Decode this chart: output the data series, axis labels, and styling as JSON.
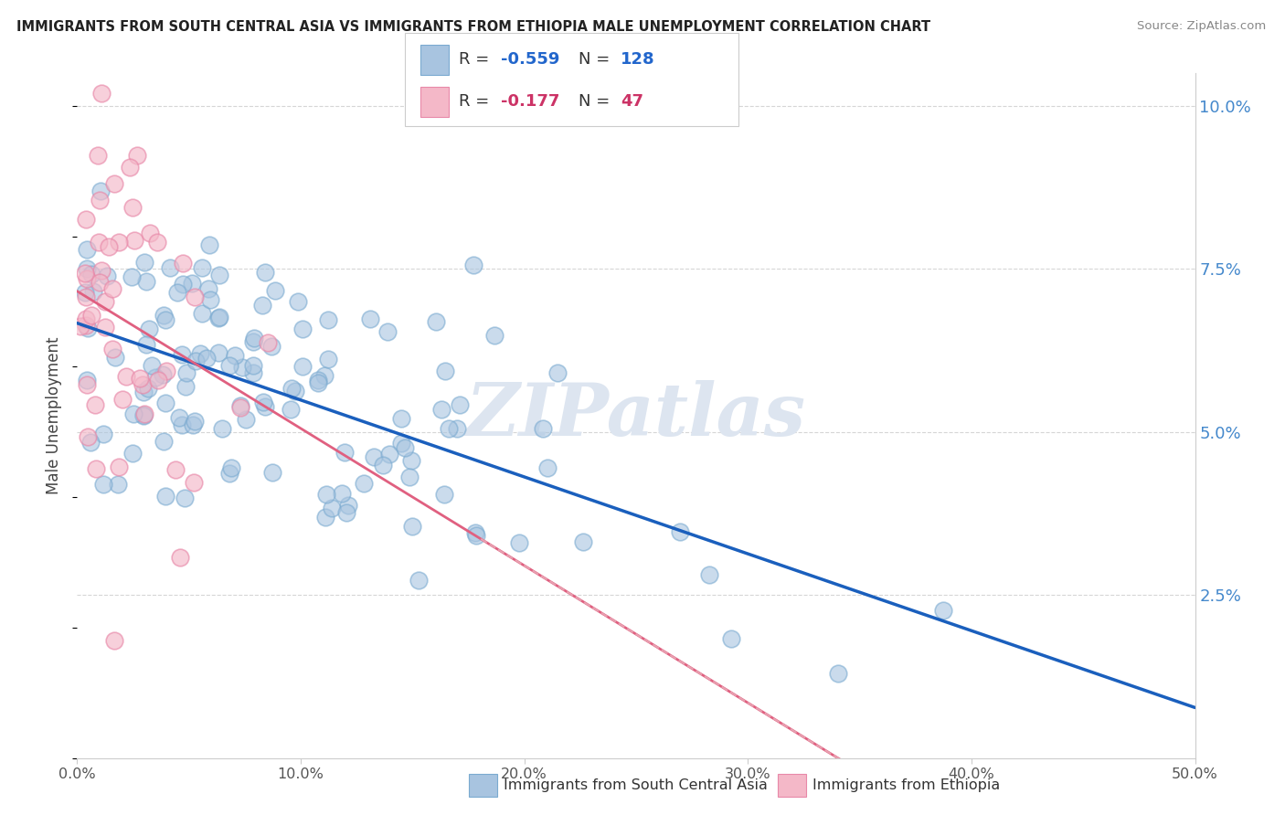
{
  "title": "IMMIGRANTS FROM SOUTH CENTRAL ASIA VS IMMIGRANTS FROM ETHIOPIA MALE UNEMPLOYMENT CORRELATION CHART",
  "source": "Source: ZipAtlas.com",
  "ylabel": "Male Unemployment",
  "xlim": [
    0.0,
    0.5
  ],
  "ylim": [
    0.0,
    0.105
  ],
  "ytick_vals": [
    0.025,
    0.05,
    0.075,
    0.1
  ],
  "ytick_labels": [
    "2.5%",
    "5.0%",
    "7.5%",
    "10.0%"
  ],
  "xtick_vals": [
    0.0,
    0.1,
    0.2,
    0.3,
    0.4,
    0.5
  ],
  "xtick_labels": [
    "0.0%",
    "10.0%",
    "20.0%",
    "30.0%",
    "40.0%",
    "50.0%"
  ],
  "legend_label_blue": "Immigrants from South Central Asia",
  "legend_label_pink": "Immigrants from Ethiopia",
  "blue_scatter_color": "#a8c4e0",
  "blue_edge_color": "#7aaad0",
  "pink_scatter_color": "#f4b8c8",
  "pink_edge_color": "#e888a8",
  "blue_line_color": "#1a5fbd",
  "pink_line_color": "#e06080",
  "pink_dashed_color": "#e8a0b0",
  "watermark": "ZIPatlas",
  "watermark_color": "#dde5f0",
  "grid_color": "#cccccc",
  "right_tick_color": "#4488cc",
  "r_blue": -0.559,
  "n_blue": 128,
  "r_pink": -0.177,
  "n_pink": 47,
  "seed_blue": 7,
  "seed_pink": 15
}
